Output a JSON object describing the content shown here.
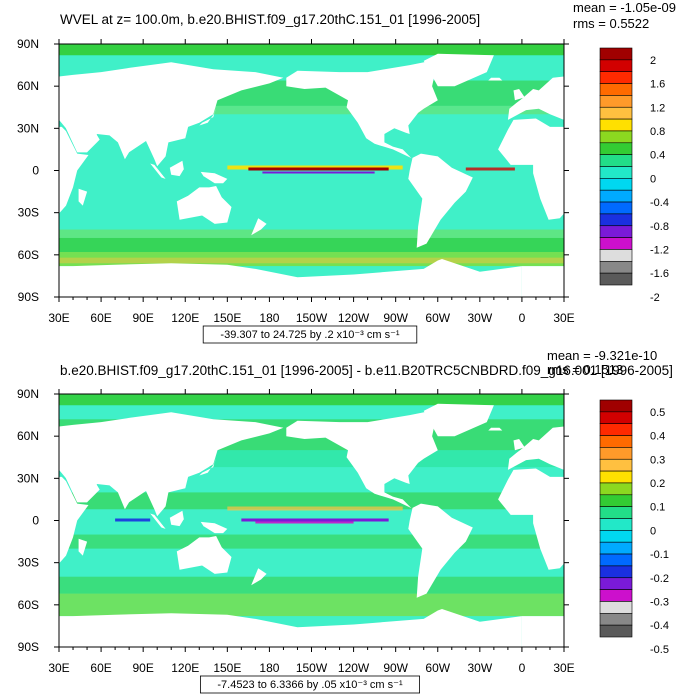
{
  "chart_data": [
    {
      "type": "heatmap",
      "title": "WVEL at z= 100.0m, b.e20.BHIST.f09_g17.20thC.151_01 [1996-2005]",
      "stats": [
        "mean = -1.05e-09",
        "rms = 0.5522"
      ],
      "xticks": [
        "30E",
        "60E",
        "90E",
        "120E",
        "150E",
        "180",
        "150W",
        "120W",
        "90W",
        "60W",
        "30W",
        "0",
        "30E"
      ],
      "yticks": [
        "90N",
        "60N",
        "30N",
        "0",
        "30S",
        "60S",
        "90S"
      ],
      "range_label": "-39.307 to 24.725 by .2 x10⁻³ cm s⁻¹",
      "colorbar_labels": [
        "2",
        "1.6",
        "1.2",
        "0.8",
        "0.4",
        "0",
        "-0.4",
        "-0.8",
        "-1.2",
        "-1.6",
        "-2"
      ],
      "colorbar_levels": [
        2,
        1.6,
        1.2,
        0.8,
        0.4,
        0,
        -0.4,
        -0.8,
        -1.2,
        -1.6,
        -2
      ],
      "colorbar_colors": [
        "#a00000",
        "#d20000",
        "#ff2a00",
        "#ff6a00",
        "#ff9a2a",
        "#ffc040",
        "#ffe000",
        "#8cd820",
        "#33cc33",
        "#22dd88",
        "#22e8c8",
        "#00d8f0",
        "#00aaff",
        "#006aff",
        "#1a30e0",
        "#7a1ad8",
        "#cc10cc",
        "#dddddd",
        "#888888",
        "#5a5a5a"
      ],
      "ocean_color": "#40f0c8",
      "land_color": "#ffffff"
    },
    {
      "type": "heatmap",
      "title": "b.e20.BHIST.f09_g17.20thC.151_01 [1996-2005] - b.e11.B20TRC5CNBDRD.f09_g16.001 [1996-2005]",
      "stats": [
        "mean = -9.321e-10",
        "rms = 0.1513"
      ],
      "xticks": [
        "30E",
        "60E",
        "90E",
        "120E",
        "150E",
        "180",
        "150W",
        "120W",
        "90W",
        "60W",
        "30W",
        "0",
        "30E"
      ],
      "yticks": [
        "90N",
        "60N",
        "30N",
        "0",
        "30S",
        "60S",
        "90S"
      ],
      "range_label": "-7.4523 to 6.3366 by .05 x10⁻³ cm s⁻¹",
      "colorbar_labels": [
        "0.5",
        "0.4",
        "0.3",
        "0.2",
        "0.1",
        "0",
        "-0.1",
        "-0.2",
        "-0.3",
        "-0.4",
        "-0.5"
      ],
      "colorbar_levels": [
        0.5,
        0.4,
        0.3,
        0.2,
        0.1,
        0,
        -0.1,
        -0.2,
        -0.3,
        -0.4,
        -0.5
      ],
      "colorbar_colors": [
        "#a00000",
        "#d20000",
        "#ff2a00",
        "#ff6a00",
        "#ff9a2a",
        "#ffc040",
        "#ffe000",
        "#8cd820",
        "#33cc33",
        "#22dd88",
        "#22e8c8",
        "#00d8f0",
        "#00aaff",
        "#006aff",
        "#1a30e0",
        "#7a1ad8",
        "#cc10cc",
        "#dddddd",
        "#888888",
        "#5a5a5a"
      ],
      "ocean_color": "#40f0c8",
      "land_color": "#ffffff"
    }
  ]
}
